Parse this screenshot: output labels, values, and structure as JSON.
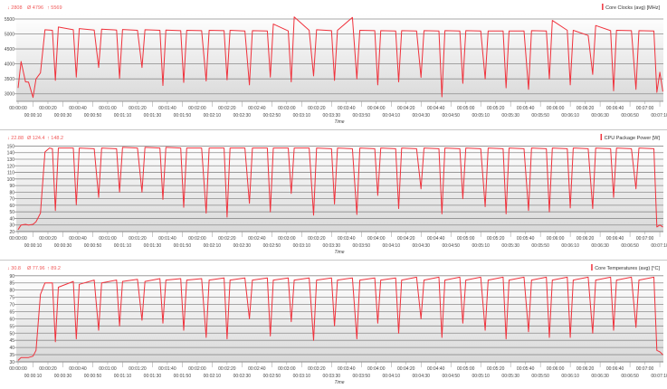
{
  "colors": {
    "series": "#f0323c",
    "stats": "#f05a5a",
    "grid": "#8c8c8c",
    "text": "#444444"
  },
  "x_ticks": [
    "00:00:00",
    "00:00:10",
    "00:00:20",
    "00:00:30",
    "00:00:40",
    "00:00:50",
    "00:01:00",
    "00:01:10",
    "00:01:20",
    "00:01:30",
    "00:01:40",
    "00:01:50",
    "00:02:00",
    "00:02:10",
    "00:02:20",
    "00:02:30",
    "00:02:40",
    "00:02:50",
    "00:03:00",
    "00:03:10",
    "00:03:20",
    "00:03:30",
    "00:03:40",
    "00:03:50",
    "00:04:00",
    "00:04:10",
    "00:04:20",
    "00:04:30",
    "00:04:40",
    "00:04:50",
    "00:05:00",
    "00:05:10",
    "00:05:20",
    "00:05:30",
    "00:05:40",
    "00:05:50",
    "00:06:00",
    "00:06:10",
    "00:06:20",
    "00:06:30",
    "00:06:40",
    "00:06:50",
    "00:07:00",
    "00:07:10"
  ],
  "x": [
    "00:00:00",
    "00:00:02",
    "00:00:05",
    "00:00:07",
    "00:00:10",
    "00:00:12",
    "00:00:15",
    "00:00:18",
    "00:00:21",
    "00:00:23",
    "00:00:25",
    "00:00:27",
    "00:00:37",
    "00:00:39",
    "00:00:41",
    "00:00:51",
    "00:00:54",
    "00:00:56",
    "00:01:06",
    "00:01:08",
    "00:01:10",
    "00:01:20",
    "00:01:23",
    "00:01:25",
    "00:01:35",
    "00:01:37",
    "00:01:39",
    "00:01:49",
    "00:01:51",
    "00:01:53",
    "00:02:03",
    "00:02:06",
    "00:02:08",
    "00:02:18",
    "00:02:20",
    "00:02:22",
    "00:02:32",
    "00:02:35",
    "00:02:37",
    "00:02:47",
    "00:02:49",
    "00:02:51",
    "00:03:01",
    "00:03:03",
    "00:03:05",
    "00:03:15",
    "00:03:18",
    "00:03:20",
    "00:03:30",
    "00:03:32",
    "00:03:34",
    "00:03:44",
    "00:03:47",
    "00:03:49",
    "00:03:59",
    "00:04:01",
    "00:04:03",
    "00:04:13",
    "00:04:15",
    "00:04:17",
    "00:04:27",
    "00:04:30",
    "00:04:32",
    "00:04:42",
    "00:04:44",
    "00:04:46",
    "00:04:56",
    "00:04:58",
    "00:05:00",
    "00:05:10",
    "00:05:13",
    "00:05:15",
    "00:05:25",
    "00:05:27",
    "00:05:29",
    "00:05:39",
    "00:05:42",
    "00:05:44",
    "00:05:54",
    "00:05:56",
    "00:05:58",
    "00:06:08",
    "00:06:10",
    "00:06:12",
    "00:06:22",
    "00:06:25",
    "00:06:27",
    "00:06:37",
    "00:06:39",
    "00:06:41",
    "00:06:51",
    "00:06:54",
    "00:06:56",
    "00:07:06",
    "00:07:08",
    "00:07:10",
    "00:07:12"
  ],
  "chart_data": [
    {
      "type": "line",
      "xlabel": "Time",
      "legend": "Core Clocks (avg) [MHz]",
      "legend_placement": "top-right",
      "stats": {
        "min": "2808",
        "avg": "4796",
        "max": "5569"
      },
      "stat_symbols": {
        "min": "↓",
        "avg": "Ø",
        "max": "↑"
      },
      "ylim": [
        2750,
        5650
      ],
      "y_ticks": [
        3000,
        3500,
        4000,
        4500,
        5000,
        5500
      ],
      "grid": true,
      "values": [
        3200,
        4080,
        3400,
        3390,
        2880,
        3500,
        3700,
        5140,
        5130,
        5120,
        3450,
        5230,
        5140,
        3560,
        5180,
        5130,
        3880,
        5160,
        5130,
        3520,
        5150,
        5120,
        3880,
        5140,
        5120,
        3280,
        5130,
        5110,
        3380,
        5120,
        5110,
        3430,
        5120,
        5110,
        3470,
        5120,
        5100,
        3300,
        5110,
        5100,
        3560,
        5330,
        5100,
        3400,
        5569,
        5120,
        3600,
        5140,
        5110,
        3450,
        5120,
        5550,
        3500,
        5120,
        5110,
        3300,
        5110,
        5100,
        3400,
        5110,
        5100,
        3550,
        5110,
        5100,
        2900,
        5110,
        5100,
        3350,
        5110,
        5100,
        3500,
        5100,
        5100,
        3200,
        5100,
        5100,
        3150,
        5110,
        5100,
        3500,
        5450,
        5120,
        3300,
        5120,
        4950,
        3650,
        5280,
        5110,
        3100,
        5120,
        5110,
        3150,
        5110,
        5100,
        3050,
        3720,
        3080
      ]
    },
    {
      "type": "line",
      "xlabel": "Time",
      "legend": "CPU Package Power [W]",
      "legend_placement": "top-right",
      "stats": {
        "min": "22.88",
        "avg": "124.4",
        "max": "148.2"
      },
      "stat_symbols": {
        "min": "↓",
        "avg": "Ø",
        "max": "↑"
      },
      "ylim": [
        20,
        152
      ],
      "y_ticks": [
        20,
        30,
        40,
        50,
        60,
        70,
        80,
        90,
        100,
        110,
        120,
        130,
        140,
        150
      ],
      "grid": true,
      "values": [
        23,
        30,
        31,
        30,
        31,
        35,
        48,
        141,
        147,
        146,
        52,
        147,
        147,
        61,
        147,
        146,
        72,
        147,
        146,
        80,
        148,
        147,
        80,
        148,
        147,
        69,
        148,
        147,
        57,
        147,
        147,
        48,
        147,
        147,
        42,
        147,
        147,
        63,
        147,
        147,
        50,
        147,
        147,
        78,
        147,
        147,
        45,
        147,
        146,
        62,
        147,
        146,
        46,
        147,
        146,
        75,
        147,
        146,
        55,
        147,
        146,
        85,
        147,
        146,
        47,
        147,
        146,
        70,
        147,
        146,
        58,
        147,
        146,
        47,
        147,
        146,
        52,
        147,
        146,
        50,
        147,
        146,
        56,
        147,
        146,
        55,
        147,
        146,
        72,
        147,
        146,
        85,
        147,
        146,
        27,
        30,
        27
      ]
    },
    {
      "type": "line",
      "xlabel": "Time",
      "legend": "Core Temperatures (avg) [°C]",
      "legend_placement": "top-right",
      "stats": {
        "min": "30.8",
        "avg": "77.96",
        "max": "89.2"
      },
      "stat_symbols": {
        "min": "↓",
        "avg": "Ø",
        "max": "↑"
      },
      "ylim": [
        30,
        90.5
      ],
      "y_ticks": [
        30,
        35,
        40,
        45,
        50,
        55,
        60,
        65,
        70,
        75,
        80,
        85,
        90
      ],
      "grid": true,
      "values": [
        31,
        33,
        33,
        33,
        34,
        38,
        77,
        85,
        85,
        85,
        44,
        82,
        86,
        46,
        84,
        87,
        52,
        85,
        87,
        55,
        86,
        87.5,
        59,
        86,
        88,
        57,
        87,
        88,
        52,
        87,
        88,
        47,
        87,
        88.5,
        46,
        87,
        88.5,
        60,
        87,
        88.5,
        48,
        87,
        88.5,
        58,
        87,
        88.5,
        45,
        87,
        88.5,
        55,
        87,
        88.5,
        46,
        87,
        88.5,
        57,
        87,
        88.5,
        50,
        87,
        89,
        60,
        87,
        89,
        47,
        87,
        89,
        57,
        87,
        89,
        52,
        87,
        89,
        46,
        87,
        89,
        51,
        87,
        89,
        47,
        87,
        89,
        47,
        87,
        89,
        50,
        87,
        89,
        52,
        87,
        89,
        54,
        87,
        89,
        38,
        37,
        35
      ]
    }
  ]
}
